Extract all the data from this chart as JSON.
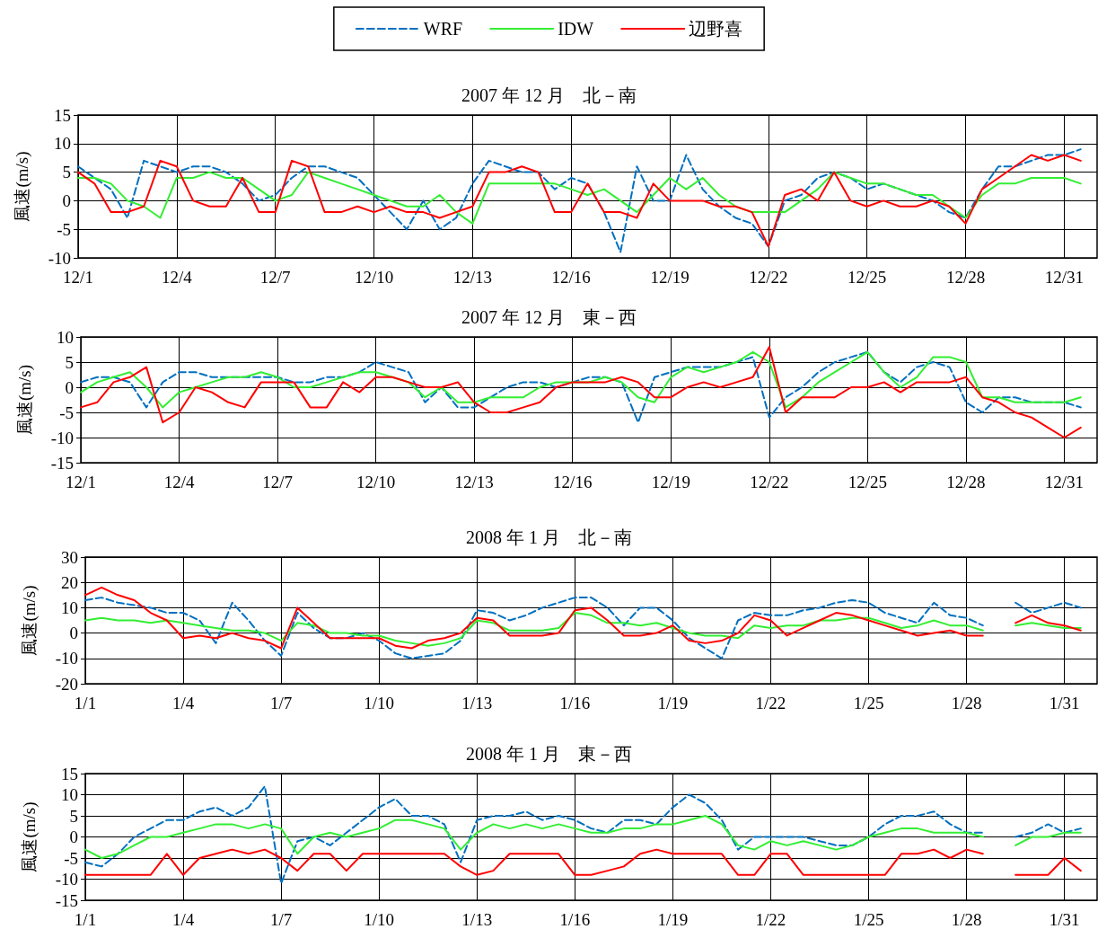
{
  "chart_data": [
    {
      "type": "line",
      "title": "2007 年 12 月　北－南",
      "ylabel": "風速(m/s)",
      "legend": "top",
      "grid": true,
      "marker": "none",
      "x": [
        "2007-12-01T00:00",
        "2007-12-01T12:00",
        "2007-12-02T00:00",
        "2007-12-02T12:00",
        "2007-12-03T00:00",
        "2007-12-03T12:00",
        "2007-12-04T00:00",
        "2007-12-04T12:00",
        "2007-12-05T00:00",
        "2007-12-05T12:00",
        "2007-12-06T00:00",
        "2007-12-06T12:00",
        "2007-12-07T00:00",
        "2007-12-07T12:00",
        "2007-12-08T00:00",
        "2007-12-08T12:00",
        "2007-12-09T00:00",
        "2007-12-09T12:00",
        "2007-12-10T00:00",
        "2007-12-10T12:00",
        "2007-12-11T00:00",
        "2007-12-11T12:00",
        "2007-12-12T00:00",
        "2007-12-12T12:00",
        "2007-12-13T00:00",
        "2007-12-13T12:00",
        "2007-12-14T00:00",
        "2007-12-14T12:00",
        "2007-12-15T00:00",
        "2007-12-15T12:00",
        "2007-12-16T00:00",
        "2007-12-16T12:00",
        "2007-12-17T00:00",
        "2007-12-17T12:00",
        "2007-12-18T00:00",
        "2007-12-18T12:00",
        "2007-12-19T00:00",
        "2007-12-19T12:00",
        "2007-12-20T00:00",
        "2007-12-20T12:00",
        "2007-12-21T00:00",
        "2007-12-21T12:00",
        "2007-12-22T00:00",
        "2007-12-22T12:00",
        "2007-12-23T00:00",
        "2007-12-23T12:00",
        "2007-12-24T00:00",
        "2007-12-24T12:00",
        "2007-12-25T00:00",
        "2007-12-25T12:00",
        "2007-12-26T00:00",
        "2007-12-26T12:00",
        "2007-12-27T00:00",
        "2007-12-27T12:00",
        "2007-12-28T00:00",
        "2007-12-28T12:00",
        "2007-12-29T00:00",
        "2007-12-29T12:00",
        "2007-12-30T00:00",
        "2007-12-30T12:00",
        "2007-12-31T00:00",
        "2007-12-31T12:00"
      ],
      "xlim": [
        "2007-12-01",
        "2008-01-01"
      ],
      "xticks": [
        {
          "value": "2007-12-01",
          "label": "12/1"
        },
        {
          "value": "2007-12-04",
          "label": "12/4"
        },
        {
          "value": "2007-12-07",
          "label": "12/7"
        },
        {
          "value": "2007-12-10",
          "label": "12/10"
        },
        {
          "value": "2007-12-13",
          "label": "12/13"
        },
        {
          "value": "2007-12-16",
          "label": "12/16"
        },
        {
          "value": "2007-12-19",
          "label": "12/19"
        },
        {
          "value": "2007-12-22",
          "label": "12/22"
        },
        {
          "value": "2007-12-25",
          "label": "12/25"
        },
        {
          "value": "2007-12-28",
          "label": "12/28"
        },
        {
          "value": "2007-12-31",
          "label": "12/31"
        }
      ],
      "ylim": [
        -10,
        15
      ],
      "yticks": [
        -10,
        -5,
        0,
        5,
        10,
        15
      ],
      "series": [
        {
          "name": "WRF",
          "color": "#0070c0",
          "line_style": "dashed",
          "values": [
            6,
            4,
            2,
            -3,
            7,
            6,
            5,
            6,
            6,
            5,
            3,
            0,
            1,
            4,
            6,
            6,
            5,
            4,
            1,
            -2,
            -5,
            0,
            -5,
            -3,
            3,
            7,
            6,
            5,
            5,
            2,
            4,
            3,
            -2,
            -9,
            6,
            0,
            0,
            8,
            2,
            -1,
            -3,
            -4,
            -8,
            0,
            1,
            4,
            5,
            4,
            2,
            3,
            2,
            1,
            0,
            -2,
            -3,
            2,
            6,
            6,
            7,
            8,
            8,
            9
          ]
        },
        {
          "name": "IDW",
          "color": "#33ee33",
          "line_style": "solid",
          "values": [
            4,
            4,
            3,
            0,
            -1,
            -3,
            4,
            4,
            5,
            4,
            4,
            2,
            0,
            1,
            5,
            4,
            3,
            2,
            1,
            0,
            -1,
            -1,
            1,
            -2,
            -4,
            3,
            3,
            3,
            3,
            3,
            2,
            1,
            2,
            0,
            -2,
            1,
            4,
            2,
            4,
            1,
            -1,
            -2,
            -2,
            -2,
            0,
            2,
            5,
            4,
            3,
            3,
            2,
            1,
            1,
            -1,
            -3,
            1,
            3,
            3,
            4,
            4,
            4,
            3
          ]
        },
        {
          "name": "辺野喜",
          "color": "#ff0000",
          "line_style": "solid",
          "values": [
            5,
            3,
            -2,
            -2,
            -1,
            7,
            6,
            0,
            -1,
            -1,
            4,
            -2,
            -2,
            7,
            6,
            -2,
            -2,
            -1,
            -2,
            -1,
            -2,
            -2,
            -3,
            -2,
            -1,
            5,
            5,
            6,
            5,
            -2,
            -2,
            3,
            -2,
            -2,
            -3,
            3,
            0,
            0,
            0,
            -1,
            -1,
            -2,
            -8,
            1,
            2,
            0,
            5,
            0,
            -1,
            0,
            -1,
            -1,
            0,
            -1,
            -4,
            2,
            4,
            6,
            8,
            7,
            8,
            7
          ]
        }
      ]
    },
    {
      "type": "line",
      "title": "2007 年 12 月　東－西",
      "ylabel": "風速(m/s)",
      "grid": true,
      "marker": "none",
      "x": [
        "2007-12-01T00:00",
        "2007-12-01T12:00",
        "2007-12-02T00:00",
        "2007-12-02T12:00",
        "2007-12-03T00:00",
        "2007-12-03T12:00",
        "2007-12-04T00:00",
        "2007-12-04T12:00",
        "2007-12-05T00:00",
        "2007-12-05T12:00",
        "2007-12-06T00:00",
        "2007-12-06T12:00",
        "2007-12-07T00:00",
        "2007-12-07T12:00",
        "2007-12-08T00:00",
        "2007-12-08T12:00",
        "2007-12-09T00:00",
        "2007-12-09T12:00",
        "2007-12-10T00:00",
        "2007-12-10T12:00",
        "2007-12-11T00:00",
        "2007-12-11T12:00",
        "2007-12-12T00:00",
        "2007-12-12T12:00",
        "2007-12-13T00:00",
        "2007-12-13T12:00",
        "2007-12-14T00:00",
        "2007-12-14T12:00",
        "2007-12-15T00:00",
        "2007-12-15T12:00",
        "2007-12-16T00:00",
        "2007-12-16T12:00",
        "2007-12-17T00:00",
        "2007-12-17T12:00",
        "2007-12-18T00:00",
        "2007-12-18T12:00",
        "2007-12-19T00:00",
        "2007-12-19T12:00",
        "2007-12-20T00:00",
        "2007-12-20T12:00",
        "2007-12-21T00:00",
        "2007-12-21T12:00",
        "2007-12-22T00:00",
        "2007-12-22T12:00",
        "2007-12-23T00:00",
        "2007-12-23T12:00",
        "2007-12-24T00:00",
        "2007-12-24T12:00",
        "2007-12-25T00:00",
        "2007-12-25T12:00",
        "2007-12-26T00:00",
        "2007-12-26T12:00",
        "2007-12-27T00:00",
        "2007-12-27T12:00",
        "2007-12-28T00:00",
        "2007-12-28T12:00",
        "2007-12-29T00:00",
        "2007-12-29T12:00",
        "2007-12-30T00:00",
        "2007-12-30T12:00",
        "2007-12-31T00:00",
        "2007-12-31T12:00"
      ],
      "xlim": [
        "2007-12-01",
        "2008-01-01"
      ],
      "xticks": [
        {
          "value": "2007-12-01",
          "label": "12/1"
        },
        {
          "value": "2007-12-04",
          "label": "12/4"
        },
        {
          "value": "2007-12-07",
          "label": "12/7"
        },
        {
          "value": "2007-12-10",
          "label": "12/10"
        },
        {
          "value": "2007-12-13",
          "label": "12/13"
        },
        {
          "value": "2007-12-16",
          "label": "12/16"
        },
        {
          "value": "2007-12-19",
          "label": "12/19"
        },
        {
          "value": "2007-12-22",
          "label": "12/22"
        },
        {
          "value": "2007-12-25",
          "label": "12/25"
        },
        {
          "value": "2007-12-28",
          "label": "12/28"
        },
        {
          "value": "2007-12-31",
          "label": "12/31"
        }
      ],
      "ylim": [
        -15,
        10
      ],
      "yticks": [
        -15,
        -10,
        -5,
        0,
        5,
        10
      ],
      "series": [
        {
          "color": "#0070c0",
          "line_style": "dashed",
          "values": [
            1,
            2,
            2,
            1,
            -4,
            1,
            3,
            3,
            2,
            2,
            2,
            2,
            2,
            1,
            1,
            2,
            2,
            3,
            5,
            4,
            3,
            -3,
            0,
            -4,
            -4,
            -2,
            0,
            1,
            1,
            0,
            1,
            2,
            2,
            1,
            -7,
            2,
            3,
            4,
            4,
            4,
            5,
            6,
            -6,
            -2,
            0,
            3,
            5,
            6,
            7,
            3,
            1,
            4,
            5,
            4,
            -3,
            -5,
            -2,
            -2,
            -3,
            -3,
            -3,
            -4
          ]
        },
        {
          "color": "#33ee33",
          "line_style": "solid",
          "values": [
            -1,
            1,
            2,
            3,
            0,
            -4,
            -1,
            0,
            1,
            2,
            2,
            3,
            2,
            0,
            0,
            1,
            2,
            3,
            3,
            2,
            1,
            -2,
            0,
            -3,
            -3,
            -2,
            -2,
            -2,
            0,
            1,
            1,
            1,
            2,
            1,
            -2,
            -3,
            2,
            4,
            3,
            4,
            5,
            7,
            5,
            -4,
            -2,
            1,
            3,
            5,
            7,
            3,
            0,
            2,
            6,
            6,
            5,
            -2,
            -2,
            -3,
            -3,
            -3,
            -3,
            -2
          ]
        },
        {
          "color": "#ff0000",
          "line_style": "solid",
          "values": [
            -4,
            -3,
            1,
            2,
            4,
            -7,
            -5,
            0,
            -1,
            -3,
            -4,
            1,
            1,
            1,
            -4,
            -4,
            1,
            -1,
            2,
            2,
            1,
            0,
            0,
            1,
            -3,
            -5,
            -5,
            -4,
            -3,
            0,
            1,
            1,
            1,
            2,
            1,
            -2,
            -2,
            0,
            1,
            0,
            1,
            2,
            8,
            -5,
            -2,
            -2,
            -2,
            0,
            0,
            1,
            -1,
            1,
            1,
            1,
            2,
            -2,
            -3,
            -5,
            -6,
            -8,
            -10,
            -8
          ]
        }
      ]
    },
    {
      "type": "line",
      "title": "2008 年 1 月　北－南",
      "ylabel": "風速(m/s)",
      "grid": true,
      "marker": "none",
      "x": [
        "2008-01-01T00:00",
        "2008-01-01T12:00",
        "2008-01-02T00:00",
        "2008-01-02T12:00",
        "2008-01-03T00:00",
        "2008-01-03T12:00",
        "2008-01-04T00:00",
        "2008-01-04T12:00",
        "2008-01-05T00:00",
        "2008-01-05T12:00",
        "2008-01-06T00:00",
        "2008-01-06T12:00",
        "2008-01-07T00:00",
        "2008-01-07T12:00",
        "2008-01-08T00:00",
        "2008-01-08T12:00",
        "2008-01-09T00:00",
        "2008-01-09T12:00",
        "2008-01-10T00:00",
        "2008-01-10T12:00",
        "2008-01-11T00:00",
        "2008-01-11T12:00",
        "2008-01-12T00:00",
        "2008-01-12T12:00",
        "2008-01-13T00:00",
        "2008-01-13T12:00",
        "2008-01-14T00:00",
        "2008-01-14T12:00",
        "2008-01-15T00:00",
        "2008-01-15T12:00",
        "2008-01-16T00:00",
        "2008-01-16T12:00",
        "2008-01-17T00:00",
        "2008-01-17T12:00",
        "2008-01-18T00:00",
        "2008-01-18T12:00",
        "2008-01-19T00:00",
        "2008-01-19T12:00",
        "2008-01-20T00:00",
        "2008-01-20T12:00",
        "2008-01-21T00:00",
        "2008-01-21T12:00",
        "2008-01-22T00:00",
        "2008-01-22T12:00",
        "2008-01-23T00:00",
        "2008-01-23T12:00",
        "2008-01-24T00:00",
        "2008-01-24T12:00",
        "2008-01-25T00:00",
        "2008-01-25T12:00",
        "2008-01-26T00:00",
        "2008-01-26T12:00",
        "2008-01-27T00:00",
        "2008-01-27T12:00",
        "2008-01-28T00:00",
        "2008-01-28T12:00",
        "2008-01-29T00:00",
        "2008-01-29T12:00",
        "2008-01-30T00:00",
        "2008-01-30T12:00",
        "2008-01-31T00:00",
        "2008-01-31T12:00"
      ],
      "xlim": [
        "2008-01-01",
        "2008-02-01"
      ],
      "xticks": [
        {
          "value": "2008-01-01",
          "label": "1/1"
        },
        {
          "value": "2008-01-04",
          "label": "1/4"
        },
        {
          "value": "2008-01-07",
          "label": "1/7"
        },
        {
          "value": "2008-01-10",
          "label": "1/10"
        },
        {
          "value": "2008-01-13",
          "label": "1/13"
        },
        {
          "value": "2008-01-16",
          "label": "1/16"
        },
        {
          "value": "2008-01-19",
          "label": "1/19"
        },
        {
          "value": "2008-01-22",
          "label": "1/22"
        },
        {
          "value": "2008-01-25",
          "label": "1/25"
        },
        {
          "value": "2008-01-28",
          "label": "1/28"
        },
        {
          "value": "2008-01-31",
          "label": "1/31"
        }
      ],
      "ylim": [
        -20,
        30
      ],
      "yticks": [
        -20,
        -10,
        0,
        10,
        20,
        30
      ],
      "series": [
        {
          "color": "#0070c0",
          "line_style": "dashed",
          "values": [
            13,
            14,
            12,
            11,
            10,
            8,
            8,
            5,
            -4,
            12,
            5,
            -3,
            -9,
            8,
            2,
            -2,
            -2,
            0,
            -3,
            -8,
            -10,
            -9,
            -8,
            -3,
            9,
            8,
            5,
            7,
            10,
            12,
            14,
            14,
            10,
            3,
            10,
            10,
            5,
            -2,
            -6,
            -10,
            5,
            8,
            7,
            7,
            9,
            10,
            12,
            13,
            12,
            8,
            6,
            4,
            12,
            7,
            6,
            3,
            null,
            12,
            8,
            10,
            12,
            10
          ]
        },
        {
          "color": "#33ee33",
          "line_style": "solid",
          "values": [
            5,
            6,
            5,
            5,
            4,
            5,
            4,
            3,
            2,
            1,
            1,
            0,
            -3,
            4,
            3,
            0,
            0,
            -1,
            -1,
            -3,
            -4,
            -5,
            -4,
            -2,
            5,
            4,
            1,
            1,
            1,
            2,
            8,
            7,
            4,
            4,
            3,
            4,
            2,
            0,
            -1,
            -1,
            -2,
            3,
            2,
            3,
            3,
            5,
            5,
            6,
            6,
            4,
            2,
            3,
            5,
            3,
            3,
            1,
            null,
            3,
            4,
            3,
            2,
            2
          ]
        },
        {
          "color": "#ff0000",
          "line_style": "solid",
          "values": [
            15,
            18,
            15,
            13,
            8,
            5,
            -2,
            -1,
            -2,
            0,
            -2,
            -3,
            -6,
            10,
            4,
            -2,
            -2,
            -2,
            -2,
            -5,
            -6,
            -3,
            -2,
            0,
            6,
            5,
            -1,
            -1,
            -1,
            0,
            9,
            10,
            5,
            -1,
            -1,
            0,
            3,
            -3,
            -4,
            -3,
            0,
            7,
            5,
            -1,
            2,
            5,
            8,
            7,
            5,
            3,
            1,
            -1,
            0,
            1,
            -1,
            -1,
            null,
            4,
            7,
            4,
            3,
            1
          ]
        }
      ]
    },
    {
      "type": "line",
      "title": "2008 年 1 月　東－西",
      "ylabel": "風速(m/s)",
      "grid": true,
      "marker": "none",
      "x": [
        "2008-01-01T00:00",
        "2008-01-01T12:00",
        "2008-01-02T00:00",
        "2008-01-02T12:00",
        "2008-01-03T00:00",
        "2008-01-03T12:00",
        "2008-01-04T00:00",
        "2008-01-04T12:00",
        "2008-01-05T00:00",
        "2008-01-05T12:00",
        "2008-01-06T00:00",
        "2008-01-06T12:00",
        "2008-01-07T00:00",
        "2008-01-07T12:00",
        "2008-01-08T00:00",
        "2008-01-08T12:00",
        "2008-01-09T00:00",
        "2008-01-09T12:00",
        "2008-01-10T00:00",
        "2008-01-10T12:00",
        "2008-01-11T00:00",
        "2008-01-11T12:00",
        "2008-01-12T00:00",
        "2008-01-12T12:00",
        "2008-01-13T00:00",
        "2008-01-13T12:00",
        "2008-01-14T00:00",
        "2008-01-14T12:00",
        "2008-01-15T00:00",
        "2008-01-15T12:00",
        "2008-01-16T00:00",
        "2008-01-16T12:00",
        "2008-01-17T00:00",
        "2008-01-17T12:00",
        "2008-01-18T00:00",
        "2008-01-18T12:00",
        "2008-01-19T00:00",
        "2008-01-19T12:00",
        "2008-01-20T00:00",
        "2008-01-20T12:00",
        "2008-01-21T00:00",
        "2008-01-21T12:00",
        "2008-01-22T00:00",
        "2008-01-22T12:00",
        "2008-01-23T00:00",
        "2008-01-23T12:00",
        "2008-01-24T00:00",
        "2008-01-24T12:00",
        "2008-01-25T00:00",
        "2008-01-25T12:00",
        "2008-01-26T00:00",
        "2008-01-26T12:00",
        "2008-01-27T00:00",
        "2008-01-27T12:00",
        "2008-01-28T00:00",
        "2008-01-28T12:00",
        "2008-01-29T00:00",
        "2008-01-29T12:00",
        "2008-01-30T00:00",
        "2008-01-30T12:00",
        "2008-01-31T00:00",
        "2008-01-31T12:00"
      ],
      "xlim": [
        "2008-01-01",
        "2008-02-01"
      ],
      "xticks": [
        {
          "value": "2008-01-01",
          "label": "1/1"
        },
        {
          "value": "2008-01-04",
          "label": "1/4"
        },
        {
          "value": "2008-01-07",
          "label": "1/7"
        },
        {
          "value": "2008-01-10",
          "label": "1/10"
        },
        {
          "value": "2008-01-13",
          "label": "1/13"
        },
        {
          "value": "2008-01-16",
          "label": "1/16"
        },
        {
          "value": "2008-01-19",
          "label": "1/19"
        },
        {
          "value": "2008-01-22",
          "label": "1/22"
        },
        {
          "value": "2008-01-25",
          "label": "1/25"
        },
        {
          "value": "2008-01-28",
          "label": "1/28"
        },
        {
          "value": "2008-01-31",
          "label": "1/31"
        }
      ],
      "ylim": [
        -15,
        15
      ],
      "yticks": [
        -15,
        -10,
        -5,
        0,
        5,
        10,
        15
      ],
      "series": [
        {
          "color": "#0070c0",
          "line_style": "dashed",
          "values": [
            -6,
            -7,
            -4,
            0,
            2,
            4,
            4,
            6,
            7,
            5,
            7,
            12,
            -11,
            -1,
            0,
            -2,
            1,
            4,
            7,
            9,
            5,
            5,
            3,
            -6,
            4,
            5,
            5,
            6,
            4,
            5,
            4,
            2,
            1,
            4,
            4,
            3,
            7,
            10,
            8,
            4,
            -3,
            0,
            0,
            0,
            0,
            -1,
            -2,
            -2,
            0,
            3,
            5,
            5,
            6,
            3,
            1,
            1,
            null,
            0,
            1,
            3,
            1,
            2
          ]
        },
        {
          "color": "#33ee33",
          "line_style": "solid",
          "values": [
            -3,
            -5,
            -4,
            -2,
            0,
            0,
            1,
            2,
            3,
            3,
            2,
            3,
            2,
            -4,
            0,
            1,
            0,
            1,
            2,
            4,
            4,
            3,
            2,
            -3,
            1,
            3,
            2,
            3,
            2,
            3,
            2,
            1,
            1,
            2,
            2,
            3,
            3,
            4,
            5,
            3,
            -2,
            -3,
            -1,
            -2,
            -1,
            -2,
            -3,
            -2,
            0,
            1,
            2,
            2,
            1,
            1,
            1,
            0,
            null,
            -2,
            0,
            0,
            1,
            1
          ]
        },
        {
          "color": "#ff0000",
          "line_style": "solid",
          "values": [
            -9,
            -9,
            -9,
            -9,
            -9,
            -4,
            -9,
            -5,
            -4,
            -3,
            -4,
            -3,
            -5,
            -8,
            -4,
            -4,
            -8,
            -4,
            -4,
            -4,
            -4,
            -4,
            -4,
            -7,
            -9,
            -8,
            -4,
            -4,
            -4,
            -4,
            -9,
            -9,
            -8,
            -7,
            -4,
            -3,
            -4,
            -4,
            -4,
            -4,
            -9,
            -9,
            -4,
            -4,
            -9,
            -9,
            -9,
            -9,
            -9,
            -9,
            -4,
            -4,
            -3,
            -5,
            -3,
            -4,
            null,
            -9,
            -9,
            -9,
            -5,
            -8
          ]
        }
      ]
    }
  ]
}
